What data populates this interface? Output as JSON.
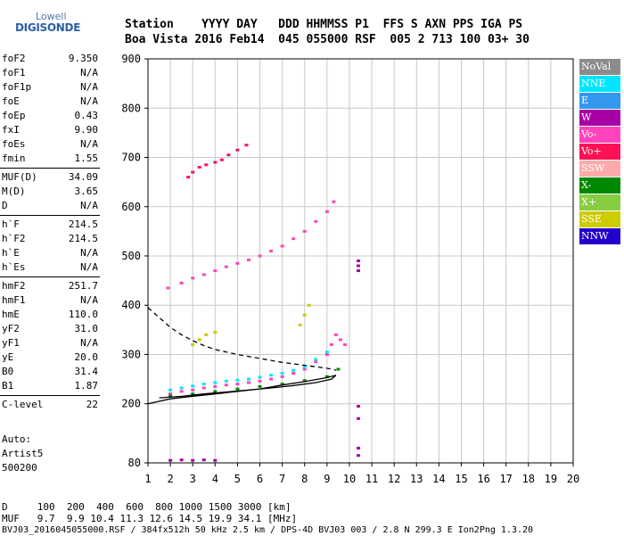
{
  "logo": {
    "top": "Lowell",
    "main": "DIGISONDE"
  },
  "header": {
    "line1": "Station    YYYY DAY   DDD HHMMSS P1  FFS S AXN PPS IGA PS",
    "line2": "Boa Vista 2016 Feb14  045 055000 RSF  005 2 713 100 03+ 30"
  },
  "params": [
    {
      "group": 1,
      "name": "foF2",
      "value": "9.350"
    },
    {
      "group": 1,
      "name": "foF1",
      "value": "N/A"
    },
    {
      "group": 1,
      "name": "foF1p",
      "value": "N/A"
    },
    {
      "group": 1,
      "name": "foE",
      "value": "N/A"
    },
    {
      "group": 1,
      "name": "foEp",
      "value": "0.43"
    },
    {
      "group": 1,
      "name": "fxI",
      "value": "9.90"
    },
    {
      "group": 1,
      "name": "foEs",
      "value": "N/A"
    },
    {
      "group": 1,
      "name": "fmin",
      "value": "1.55"
    },
    {
      "group": 2,
      "name": "MUF(D)",
      "value": "34.09"
    },
    {
      "group": 2,
      "name": "M(D)",
      "value": "3.65"
    },
    {
      "group": 2,
      "name": "D",
      "value": "N/A"
    },
    {
      "group": 3,
      "name": "h`F",
      "value": "214.5"
    },
    {
      "group": 3,
      "name": "h`F2",
      "value": "214.5"
    },
    {
      "group": 3,
      "name": "h`E",
      "value": "N/A"
    },
    {
      "group": 3,
      "name": "h`Es",
      "value": "N/A"
    },
    {
      "group": 4,
      "name": "hmF2",
      "value": "251.7"
    },
    {
      "group": 4,
      "name": "hmF1",
      "value": "N/A"
    },
    {
      "group": 4,
      "name": "hmE",
      "value": "110.0"
    },
    {
      "group": 4,
      "name": "yF2",
      "value": "31.0"
    },
    {
      "group": 4,
      "name": "yF1",
      "value": "N/A"
    },
    {
      "group": 4,
      "name": "yE",
      "value": "20.0"
    },
    {
      "group": 4,
      "name": "B0",
      "value": "31.4"
    },
    {
      "group": 4,
      "name": "B1",
      "value": "1.87"
    },
    {
      "group": 5,
      "name": "C-level",
      "value": "22"
    }
  ],
  "auto": {
    "line1": "Auto:",
    "line2": "Artist5",
    "line3": "500200"
  },
  "legend": [
    {
      "label": "NoVal",
      "color": "#8c8c8c"
    },
    {
      "label": "NNE",
      "color": "#00e5ff"
    },
    {
      "label": "E",
      "color": "#3399ee"
    },
    {
      "label": "W",
      "color": "#a600a6"
    },
    {
      "label": "Vo-",
      "color": "#ff44bb"
    },
    {
      "label": "Vo+",
      "color": "#ff1155"
    },
    {
      "label": "SSW",
      "color": "#ffaaaa"
    },
    {
      "label": "X-",
      "color": "#008800"
    },
    {
      "label": "X+",
      "color": "#88cc44"
    },
    {
      "label": "SSE",
      "color": "#cccc00"
    },
    {
      "label": "NNW",
      "color": "#2200cc"
    }
  ],
  "footer": {
    "row1": "D     100  200  400  600  800 1000 1500 3000 [km]",
    "row2": "MUF   9.7  9.9 10.4 11.3 12.6 14.5 19.9 34.1 [MHz]",
    "row3": "BVJ03_2016045055000.RSF / 384fx512h 50 kHz 2.5 km / DPS-4D BVJ03 003 / 2.8 N 299.3 E Ion2Png 1.3.20"
  },
  "chart_data": {
    "type": "scatter",
    "xlabel": "",
    "ylabel": "",
    "xlim": [
      1,
      20
    ],
    "ylim": [
      80,
      900
    ],
    "y_scale": "nonlinear",
    "x_ticks": [
      1,
      2,
      3,
      4,
      5,
      6,
      7,
      8,
      9,
      10,
      11,
      12,
      13,
      14,
      15,
      16,
      17,
      18,
      19,
      20
    ],
    "y_ticks": [
      80,
      200,
      300,
      400,
      500,
      600,
      700,
      800,
      900
    ],
    "y_tick_norm": [
      0,
      0.1463,
      0.2683,
      0.3902,
      0.5122,
      0.6341,
      0.7561,
      0.878,
      1.0
    ],
    "grid": true,
    "series": [
      {
        "type": "scatter",
        "color": "#ff44bb",
        "points": [
          [
            2.0,
            220
          ],
          [
            2.5,
            225
          ],
          [
            3.0,
            228
          ],
          [
            3.5,
            232
          ],
          [
            4.0,
            235
          ],
          [
            4.5,
            238
          ],
          [
            5.0,
            240
          ],
          [
            5.5,
            243
          ],
          [
            6.0,
            246
          ],
          [
            6.5,
            250
          ],
          [
            7.0,
            255
          ],
          [
            7.5,
            262
          ],
          [
            8.0,
            270
          ],
          [
            8.5,
            285
          ],
          [
            9.0,
            300
          ],
          [
            9.2,
            320
          ],
          [
            9.4,
            340
          ],
          [
            9.6,
            330
          ],
          [
            9.8,
            320
          ]
        ]
      },
      {
        "type": "scatter",
        "color": "#00e5ff",
        "points": [
          [
            2.0,
            228
          ],
          [
            2.5,
            232
          ],
          [
            3.0,
            236
          ],
          [
            3.5,
            240
          ],
          [
            4.0,
            243
          ],
          [
            4.5,
            246
          ],
          [
            5.0,
            248
          ],
          [
            5.5,
            250
          ],
          [
            6.0,
            254
          ],
          [
            6.5,
            258
          ],
          [
            7.0,
            262
          ],
          [
            7.5,
            268
          ],
          [
            8.0,
            275
          ],
          [
            8.5,
            290
          ],
          [
            9.0,
            305
          ]
        ]
      },
      {
        "type": "scatter",
        "color": "#ff44bb",
        "points": [
          [
            1.9,
            435
          ],
          [
            2.5,
            445
          ],
          [
            3.0,
            455
          ],
          [
            3.5,
            462
          ],
          [
            4.0,
            470
          ],
          [
            4.5,
            478
          ],
          [
            5.0,
            485
          ],
          [
            5.5,
            492
          ],
          [
            6.0,
            500
          ],
          [
            6.5,
            510
          ],
          [
            7.0,
            520
          ],
          [
            7.5,
            535
          ],
          [
            8.0,
            550
          ],
          [
            8.5,
            570
          ],
          [
            9.0,
            590
          ],
          [
            9.3,
            610
          ]
        ]
      },
      {
        "type": "scatter",
        "color": "#ff1155",
        "points": [
          [
            2.8,
            660
          ],
          [
            3.0,
            670
          ],
          [
            3.3,
            680
          ],
          [
            3.6,
            685
          ],
          [
            4.0,
            690
          ],
          [
            4.3,
            695
          ],
          [
            4.6,
            705
          ],
          [
            5.0,
            715
          ],
          [
            5.4,
            725
          ]
        ]
      },
      {
        "type": "scatter",
        "color": "#cccc00",
        "points": [
          [
            3.0,
            320
          ],
          [
            3.3,
            330
          ],
          [
            3.6,
            340
          ],
          [
            4.0,
            345
          ],
          [
            7.8,
            360
          ],
          [
            8.0,
            380
          ],
          [
            8.2,
            400
          ]
        ]
      },
      {
        "type": "scatter",
        "color": "#008800",
        "points": [
          [
            2.0,
            216
          ],
          [
            3.0,
            220
          ],
          [
            4.0,
            225
          ],
          [
            5.0,
            230
          ],
          [
            6.0,
            235
          ],
          [
            7.0,
            240
          ],
          [
            8.0,
            247
          ],
          [
            9.0,
            255
          ],
          [
            9.5,
            270
          ]
        ]
      },
      {
        "type": "scatter",
        "color": "#a600a6",
        "points": [
          [
            2.0,
            85
          ],
          [
            2.5,
            86
          ],
          [
            3.0,
            85
          ],
          [
            3.5,
            86
          ],
          [
            4.0,
            85
          ],
          [
            10.4,
            470
          ],
          [
            10.4,
            480
          ],
          [
            10.4,
            490
          ],
          [
            10.4,
            195
          ],
          [
            10.4,
            170
          ],
          [
            10.4,
            110
          ],
          [
            10.4,
            95
          ]
        ]
      }
    ],
    "lines": [
      {
        "style": "solid",
        "color": "#000000",
        "points": [
          [
            1.0,
            200
          ],
          [
            2.0,
            210
          ],
          [
            3.0,
            215
          ],
          [
            4.0,
            220
          ],
          [
            5.0,
            225
          ],
          [
            6.0,
            230
          ],
          [
            7.0,
            238
          ],
          [
            8.0,
            245
          ],
          [
            9.0,
            253
          ],
          [
            9.4,
            258
          ],
          [
            9.2,
            250
          ],
          [
            8.5,
            243
          ],
          [
            7.5,
            237
          ],
          [
            6.5,
            232
          ],
          [
            5.5,
            228
          ],
          [
            4.5,
            224
          ],
          [
            3.5,
            220
          ],
          [
            2.5,
            215
          ],
          [
            1.5,
            212
          ]
        ]
      },
      {
        "style": "dashed",
        "color": "#000000",
        "points": [
          [
            1.0,
            395
          ],
          [
            1.5,
            375
          ],
          [
            2.0,
            355
          ],
          [
            2.5,
            340
          ],
          [
            3.0,
            328
          ],
          [
            3.5,
            318
          ],
          [
            4.0,
            310
          ],
          [
            5.0,
            300
          ],
          [
            6.0,
            292
          ],
          [
            7.0,
            284
          ],
          [
            8.0,
            278
          ],
          [
            9.0,
            272
          ],
          [
            9.4,
            268
          ]
        ]
      }
    ]
  }
}
